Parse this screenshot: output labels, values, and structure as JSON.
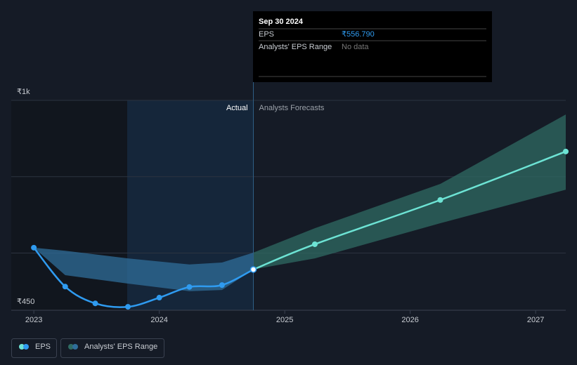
{
  "chart_data": {
    "type": "line",
    "xlim": [
      2022.82,
      2027.24
    ],
    "ylim": [
      450,
      1000
    ],
    "xticks": [
      2023,
      2024,
      2025,
      2026,
      2027
    ],
    "yticks": [
      {
        "value": 450,
        "label": "₹450"
      },
      {
        "value": 1000,
        "label": "₹1k"
      }
    ],
    "ygrid": [
      600,
      800,
      1000
    ],
    "divider_x": 2024.75,
    "divider_labels": {
      "left": "Actual",
      "right": "Analysts Forecasts"
    },
    "eps": {
      "name": "EPS",
      "color": "#2f9bf0",
      "x": [
        2023.0,
        2023.25,
        2023.49,
        2023.75,
        2024.0,
        2024.24,
        2024.5,
        2024.75
      ],
      "values": [
        614,
        512,
        468,
        459,
        483,
        511,
        516,
        556.79
      ]
    },
    "forecast": {
      "color": "#6de3d4",
      "x": [
        2024.75,
        2025.24,
        2026.24,
        2027.24
      ],
      "values": [
        556.79,
        623,
        739,
        866
      ]
    },
    "range": {
      "name": "Analysts' EPS Range",
      "color": "#2f6e9a",
      "forecast_color": "#2f6b63",
      "x": [
        2023.0,
        2023.25,
        2023.75,
        2024.24,
        2024.5,
        2024.75,
        2025.24,
        2026.24,
        2027.24
      ],
      "low": [
        614,
        542,
        520,
        500,
        503,
        557,
        586,
        678,
        766
      ],
      "high": [
        614,
        606,
        586,
        570,
        575,
        601,
        665,
        781,
        963
      ]
    },
    "tooltip": {
      "date": "Sep 30 2024",
      "rows": [
        [
          "EPS",
          "₹556.790"
        ],
        [
          "Analysts' EPS Range",
          "No data"
        ]
      ]
    }
  }
}
